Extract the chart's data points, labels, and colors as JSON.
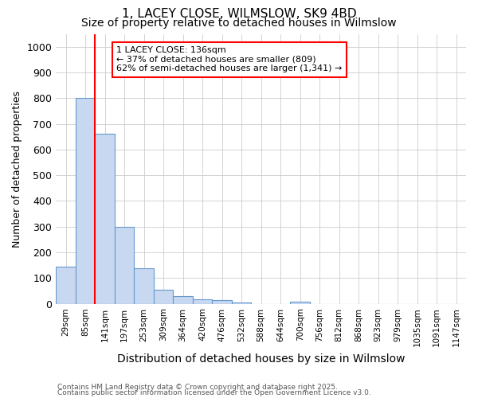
{
  "title1": "1, LACEY CLOSE, WILMSLOW, SK9 4BD",
  "title2": "Size of property relative to detached houses in Wilmslow",
  "xlabel": "Distribution of detached houses by size in Wilmslow",
  "ylabel": "Number of detached properties",
  "bin_labels": [
    "29sqm",
    "85sqm",
    "141sqm",
    "197sqm",
    "253sqm",
    "309sqm",
    "364sqm",
    "420sqm",
    "476sqm",
    "532sqm",
    "588sqm",
    "644sqm",
    "700sqm",
    "756sqm",
    "812sqm",
    "868sqm",
    "923sqm",
    "979sqm",
    "1035sqm",
    "1091sqm",
    "1147sqm"
  ],
  "bar_values": [
    145,
    800,
    660,
    300,
    137,
    53,
    30,
    18,
    15,
    5,
    0,
    0,
    9,
    0,
    0,
    0,
    0,
    0,
    0,
    0,
    0
  ],
  "bar_color": "#c8d8f0",
  "bar_edge_color": "#6699cc",
  "vline_color": "red",
  "vline_position": 2.5,
  "annotation_text": "1 LACEY CLOSE: 136sqm\n← 37% of detached houses are smaller (809)\n62% of semi-detached houses are larger (1,341) →",
  "annotation_box_color": "white",
  "annotation_box_edge": "red",
  "ylim": [
    0,
    1050
  ],
  "yticks": [
    0,
    100,
    200,
    300,
    400,
    500,
    600,
    700,
    800,
    900,
    1000
  ],
  "footer1": "Contains HM Land Registry data © Crown copyright and database right 2025.",
  "footer2": "Contains public sector information licensed under the Open Government Licence v3.0.",
  "grid_color": "#cccccc",
  "background_color": "#ffffff",
  "title_fontsize": 11,
  "subtitle_fontsize": 10
}
